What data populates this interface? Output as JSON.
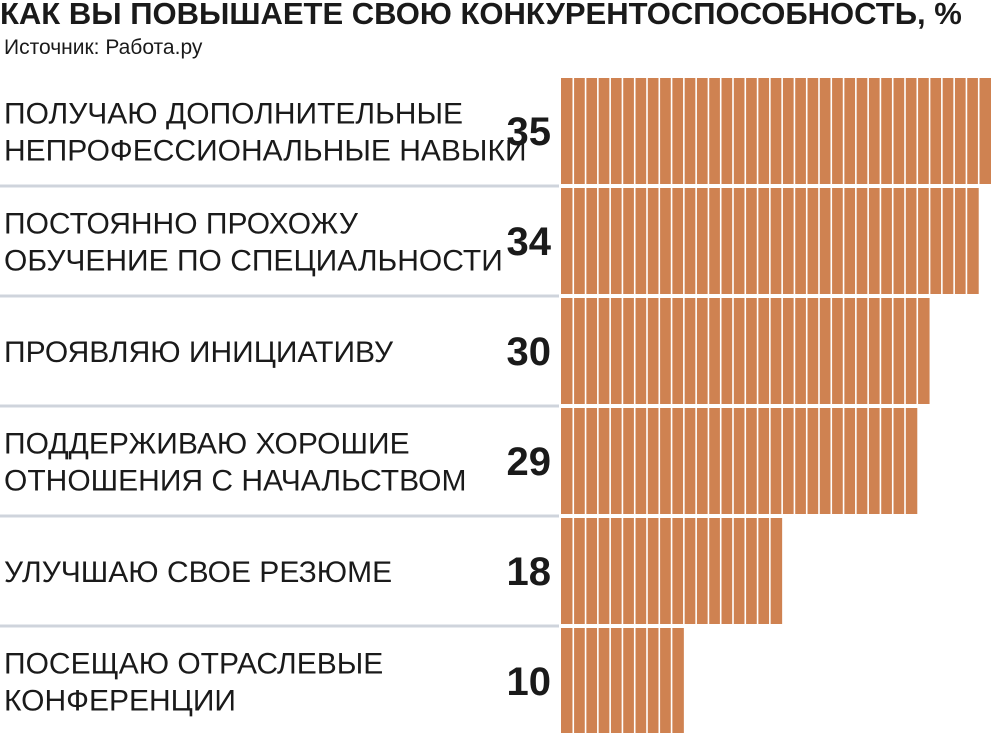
{
  "chart_data": {
    "type": "bar",
    "title": "КАК ВЫ ПОВЫШАЕТЕ СВОЮ КОНКУРЕНТОСПОСОБНОСТЬ, %",
    "subtitle": "Источник: Работа.ру",
    "categories": [
      [
        "ПОЛУЧАЮ ДОПОЛНИТЕЛЬНЫЕ",
        "НЕПРОФЕССИОНАЛЬНЫЕ НАВЫКИ"
      ],
      [
        "ПОСТОЯННО ПРОХОЖУ",
        "ОБУЧЕНИЕ ПО СПЕЦИАЛЬНОСТИ"
      ],
      [
        "ПРОЯВЛЯЮ ИНИЦИАТИВУ"
      ],
      [
        "ПОДДЕРЖИВАЮ ХОРОШИЕ",
        "ОТНОШЕНИЯ С НАЧАЛЬСТВОМ"
      ],
      [
        "УЛУЧШАЮ СВОЕ РЕЗЮМЕ"
      ],
      [
        "ПОСЕЩАЮ ОТРАСЛЕВЫЕ",
        "КОНФЕРЕНЦИИ"
      ]
    ],
    "values": [
      35,
      34,
      30,
      29,
      18,
      10
    ],
    "orientation": "horizontal",
    "grid": false,
    "bar_color": "#cf8251",
    "separator_color": "#cfd4dc",
    "xlim": [
      0,
      35
    ]
  }
}
